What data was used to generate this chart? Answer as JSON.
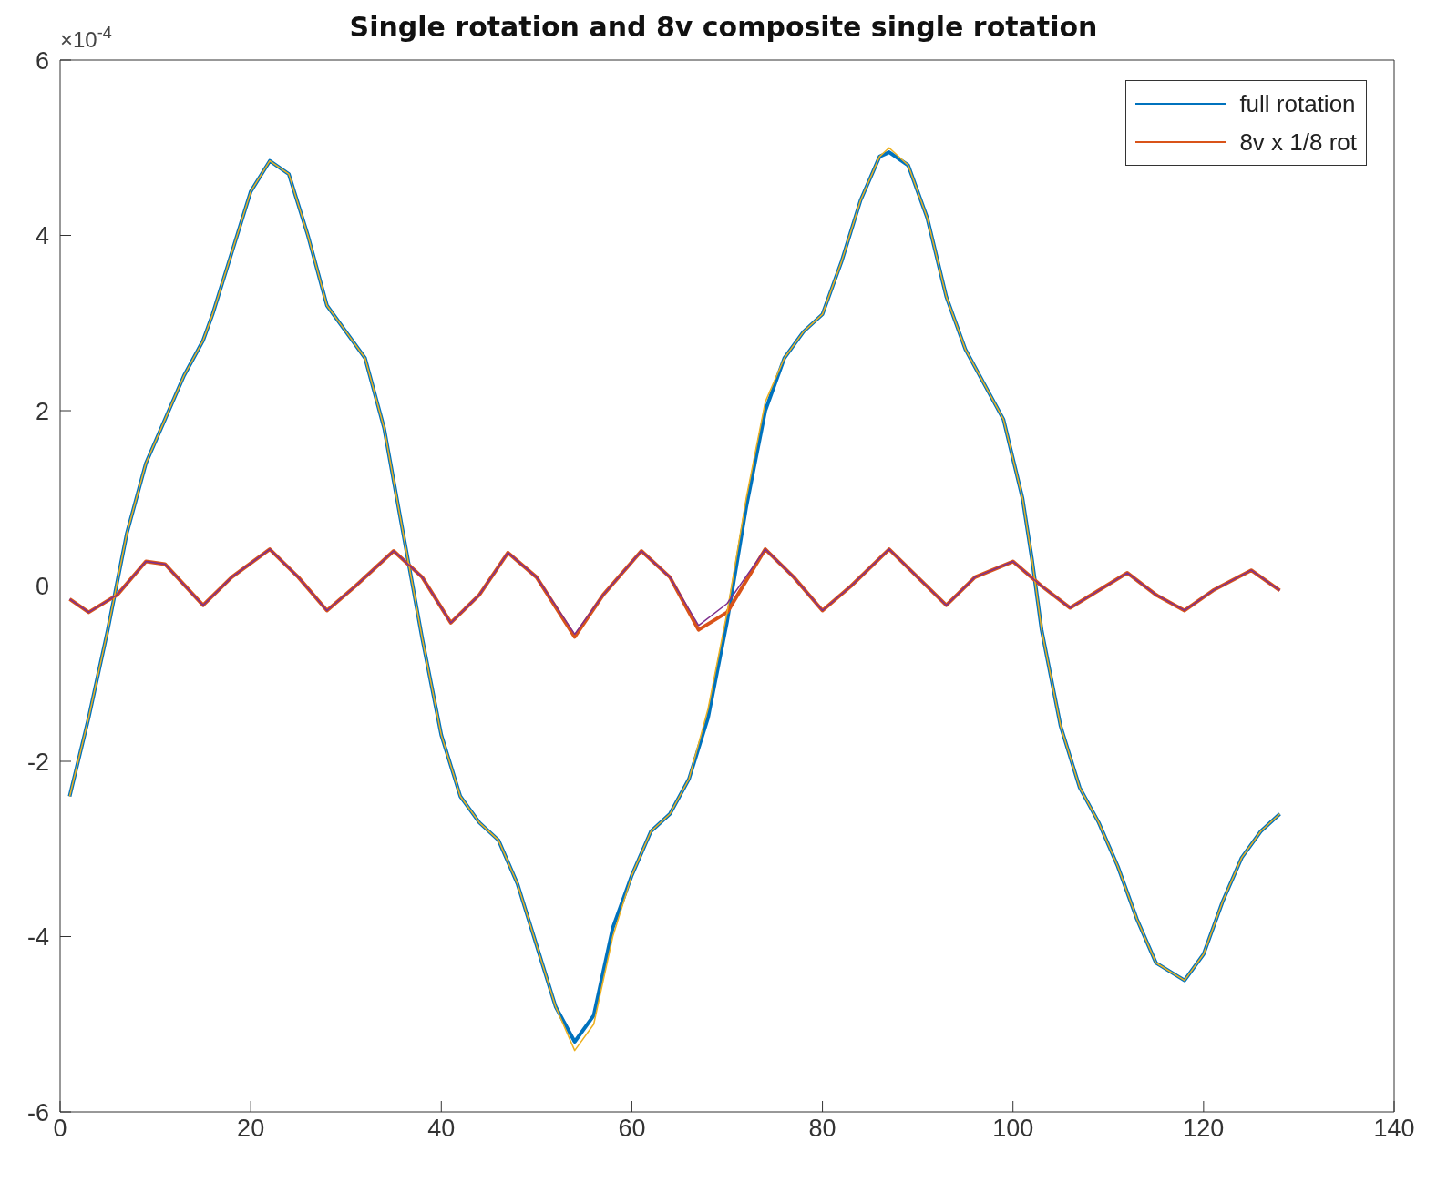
{
  "chart_data": {
    "type": "line",
    "title": "Single rotation and 8v composite single rotation",
    "annotations": [
      "×10$^{-4}$"
    ],
    "xlim": [
      0,
      140
    ],
    "xticks": [
      0,
      20,
      40,
      60,
      80,
      100,
      120,
      140
    ],
    "ylim": [
      -6,
      6
    ],
    "yticks": [
      -6,
      -4,
      -2,
      0,
      2,
      4,
      6
    ],
    "legend": "top right",
    "marker": "none",
    "line_style": "solid",
    "series": [
      {
        "name": "full rotation",
        "color": "#0072bd",
        "x": [
          1,
          3,
          5,
          7,
          9,
          11,
          13,
          15,
          16,
          18,
          20,
          22,
          24,
          26,
          28,
          30,
          32,
          34,
          36,
          37,
          38,
          40,
          42,
          44,
          46,
          48,
          50,
          52,
          54,
          56,
          58,
          60,
          62,
          64,
          66,
          68,
          70,
          72,
          74,
          76,
          78,
          80,
          82,
          84,
          86,
          87,
          89,
          91,
          93,
          95,
          97,
          99,
          101,
          102,
          103,
          105,
          107,
          109,
          111,
          113,
          115,
          118,
          120,
          122,
          124,
          126,
          128
        ],
        "values": [
          -2.4,
          -1.5,
          -0.5,
          0.6,
          1.4,
          1.9,
          2.4,
          2.8,
          3.1,
          3.8,
          4.5,
          4.85,
          4.7,
          4,
          3.2,
          2.9,
          2.6,
          1.8,
          0.6,
          0,
          -0.6,
          -1.7,
          -2.4,
          -2.7,
          -2.9,
          -3.4,
          -4.1,
          -4.8,
          -5.2,
          -4.9,
          -3.9,
          -3.3,
          -2.8,
          -2.6,
          -2.2,
          -1.5,
          -0.4,
          0.9,
          2,
          2.6,
          2.9,
          3.1,
          3.7,
          4.4,
          4.9,
          4.95,
          4.8,
          4.2,
          3.3,
          2.7,
          2.3,
          1.9,
          1,
          0.3,
          -0.5,
          -1.6,
          -2.3,
          -2.7,
          -3.2,
          -3.8,
          -4.3,
          -4.5,
          -4.2,
          -3.6,
          -3.1,
          -2.8,
          -2.6
        ]
      },
      {
        "name": "8v x 1/8 rot",
        "color": "#d95319",
        "x": [
          1,
          3,
          6,
          9,
          11,
          15,
          18,
          22,
          25,
          28,
          31,
          35,
          38,
          41,
          44,
          47,
          50,
          54,
          57,
          61,
          64,
          67,
          70,
          74,
          77,
          80,
          83,
          87,
          90,
          93,
          96,
          100,
          103,
          106,
          109,
          112,
          115,
          118,
          121,
          125,
          128
        ],
        "values": [
          -0.15,
          -0.3,
          -0.1,
          0.28,
          0.25,
          -0.22,
          0.1,
          0.42,
          0.1,
          -0.28,
          0,
          0.4,
          0.1,
          -0.42,
          -0.1,
          0.38,
          0.1,
          -0.58,
          -0.1,
          0.4,
          0.1,
          -0.5,
          -0.3,
          0.42,
          0.1,
          -0.28,
          0,
          0.42,
          0.1,
          -0.22,
          0.1,
          0.28,
          0,
          -0.25,
          -0.05,
          0.15,
          -0.1,
          -0.28,
          -0.05,
          0.18,
          -0.05
        ]
      },
      {
        "color": "#edb120",
        "x": [
          1,
          3,
          5,
          7,
          9,
          11,
          13,
          15,
          16,
          18,
          20,
          22,
          24,
          26,
          28,
          30,
          32,
          34,
          36,
          37,
          38,
          40,
          42,
          44,
          46,
          48,
          50,
          52,
          54,
          56,
          58,
          60,
          62,
          64,
          66,
          68,
          70,
          72,
          74,
          76,
          78,
          80,
          82,
          84,
          86,
          87,
          89,
          91,
          93,
          95,
          97,
          99,
          101,
          102,
          103,
          105,
          107,
          109,
          111,
          113,
          115,
          118,
          120,
          122,
          124,
          126,
          128
        ],
        "values": [
          -2.4,
          -1.5,
          -0.5,
          0.6,
          1.4,
          1.9,
          2.4,
          2.8,
          3.1,
          3.8,
          4.5,
          4.85,
          4.7,
          4,
          3.2,
          2.9,
          2.6,
          1.8,
          0.6,
          0,
          -0.6,
          -1.7,
          -2.4,
          -2.7,
          -2.9,
          -3.4,
          -4.1,
          -4.8,
          -5.3,
          -5,
          -4,
          -3.3,
          -2.8,
          -2.6,
          -2.2,
          -1.4,
          -0.3,
          1,
          2.1,
          2.6,
          2.9,
          3.1,
          3.7,
          4.4,
          4.9,
          5,
          4.8,
          4.2,
          3.3,
          2.7,
          2.3,
          1.9,
          1,
          0.3,
          -0.5,
          -1.6,
          -2.3,
          -2.7,
          -3.2,
          -3.8,
          -4.3,
          -4.5,
          -4.2,
          -3.6,
          -3.1,
          -2.8,
          -2.6
        ]
      },
      {
        "color": "#7e2f8e",
        "x": [
          1,
          3,
          6,
          9,
          11,
          15,
          18,
          22,
          25,
          28,
          31,
          35,
          38,
          41,
          44,
          47,
          50,
          54,
          57,
          61,
          64,
          67,
          70,
          74,
          77,
          80,
          83,
          87,
          90,
          93,
          96,
          100,
          103,
          106,
          109,
          112,
          115,
          118,
          121,
          125,
          128
        ],
        "values": [
          -0.15,
          -0.3,
          -0.1,
          0.28,
          0.25,
          -0.22,
          0.1,
          0.42,
          0.1,
          -0.28,
          0,
          0.4,
          0.1,
          -0.42,
          -0.1,
          0.38,
          0.1,
          -0.55,
          -0.1,
          0.4,
          0.1,
          -0.45,
          -0.2,
          0.42,
          0.1,
          -0.28,
          0,
          0.42,
          0.1,
          -0.22,
          0.1,
          0.28,
          0,
          -0.25,
          -0.05,
          0.15,
          -0.1,
          -0.28,
          -0.05,
          0.18,
          -0.05
        ]
      }
    ]
  }
}
